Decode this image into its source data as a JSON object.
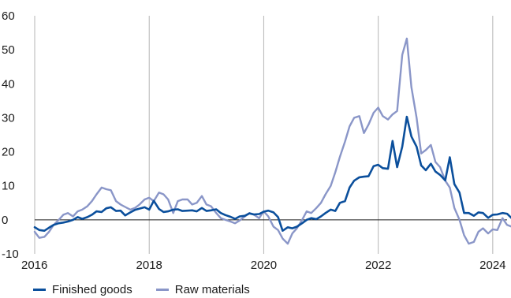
{
  "chart_data": {
    "type": "line",
    "title": "",
    "xlabel": "",
    "ylabel": "",
    "ylim": [
      -10,
      60
    ],
    "xlim": [
      2016,
      2024.25
    ],
    "yticks": [
      -10,
      0,
      10,
      20,
      30,
      40,
      50,
      60
    ],
    "xticks": [
      2016,
      2018,
      2020,
      2022,
      2024
    ],
    "xticklabels": [
      "2016",
      "2018",
      "2020",
      "2022",
      "2024"
    ],
    "grid": "vertical",
    "legend_position": "bottom-left",
    "series": [
      {
        "name": "Finished goods",
        "color": "#0b4f9c",
        "points": [
          [
            2016.0,
            -2.2
          ],
          [
            2016.08,
            -3.0
          ],
          [
            2016.17,
            -3.2
          ],
          [
            2016.25,
            -2.3
          ],
          [
            2016.33,
            -1.5
          ],
          [
            2016.42,
            -1.0
          ],
          [
            2016.5,
            -0.8
          ],
          [
            2016.58,
            -0.5
          ],
          [
            2016.67,
            0.0
          ],
          [
            2016.75,
            0.8
          ],
          [
            2016.83,
            0.3
          ],
          [
            2016.92,
            0.8
          ],
          [
            2017.0,
            1.5
          ],
          [
            2017.08,
            2.5
          ],
          [
            2017.17,
            2.3
          ],
          [
            2017.25,
            3.4
          ],
          [
            2017.33,
            3.7
          ],
          [
            2017.42,
            2.6
          ],
          [
            2017.5,
            2.7
          ],
          [
            2017.58,
            1.3
          ],
          [
            2017.67,
            2.2
          ],
          [
            2017.75,
            2.9
          ],
          [
            2017.83,
            3.3
          ],
          [
            2017.92,
            3.7
          ],
          [
            2018.0,
            3.0
          ],
          [
            2018.08,
            5.6
          ],
          [
            2018.17,
            3.2
          ],
          [
            2018.25,
            2.3
          ],
          [
            2018.33,
            2.5
          ],
          [
            2018.42,
            3.0
          ],
          [
            2018.5,
            3.1
          ],
          [
            2018.58,
            2.6
          ],
          [
            2018.67,
            2.7
          ],
          [
            2018.75,
            2.8
          ],
          [
            2018.83,
            2.5
          ],
          [
            2018.92,
            3.5
          ],
          [
            2019.0,
            2.6
          ],
          [
            2019.08,
            2.8
          ],
          [
            2019.17,
            3.1
          ],
          [
            2019.25,
            2.0
          ],
          [
            2019.33,
            1.4
          ],
          [
            2019.42,
            0.9
          ],
          [
            2019.5,
            0.3
          ],
          [
            2019.58,
            1.0
          ],
          [
            2019.67,
            1.2
          ],
          [
            2019.75,
            1.9
          ],
          [
            2019.83,
            1.6
          ],
          [
            2019.92,
            1.7
          ],
          [
            2020.0,
            2.4
          ],
          [
            2020.08,
            2.7
          ],
          [
            2020.17,
            2.2
          ],
          [
            2020.25,
            0.8
          ],
          [
            2020.33,
            -3.2
          ],
          [
            2020.42,
            -2.2
          ],
          [
            2020.5,
            -2.5
          ],
          [
            2020.58,
            -2.0
          ],
          [
            2020.67,
            -1.0
          ],
          [
            2020.75,
            0.0
          ],
          [
            2020.83,
            0.5
          ],
          [
            2020.92,
            0.2
          ],
          [
            2021.0,
            1.0
          ],
          [
            2021.08,
            2.0
          ],
          [
            2021.17,
            3.0
          ],
          [
            2021.25,
            2.6
          ],
          [
            2021.33,
            5.0
          ],
          [
            2021.42,
            5.5
          ],
          [
            2021.5,
            9.5
          ],
          [
            2021.58,
            11.5
          ],
          [
            2021.67,
            12.5
          ],
          [
            2021.75,
            12.7
          ],
          [
            2021.83,
            12.8
          ],
          [
            2021.92,
            15.8
          ],
          [
            2022.0,
            16.2
          ],
          [
            2022.08,
            15.2
          ],
          [
            2022.17,
            15.0
          ],
          [
            2022.25,
            23.2
          ],
          [
            2022.33,
            15.5
          ],
          [
            2022.42,
            21.5
          ],
          [
            2022.5,
            30.3
          ],
          [
            2022.58,
            24.5
          ],
          [
            2022.67,
            21.5
          ],
          [
            2022.75,
            16.0
          ],
          [
            2022.83,
            14.6
          ],
          [
            2022.92,
            16.5
          ],
          [
            2023.0,
            14.2
          ],
          [
            2023.08,
            13.2
          ],
          [
            2023.17,
            11.6
          ],
          [
            2023.25,
            18.4
          ],
          [
            2023.33,
            10.5
          ],
          [
            2023.42,
            8.0
          ],
          [
            2023.5,
            2.0
          ],
          [
            2023.58,
            2.0
          ],
          [
            2023.67,
            1.2
          ],
          [
            2023.75,
            2.2
          ],
          [
            2023.83,
            2.0
          ],
          [
            2023.92,
            0.6
          ],
          [
            2024.0,
            1.5
          ],
          [
            2024.08,
            1.6
          ],
          [
            2024.17,
            2.0
          ],
          [
            2024.25,
            1.8
          ],
          [
            2024.33,
            0.5
          ],
          [
            2024.42,
            -2.3
          ]
        ]
      },
      {
        "name": "Raw materials",
        "color": "#8a96c8",
        "points": [
          [
            2016.0,
            -3.5
          ],
          [
            2016.08,
            -5.3
          ],
          [
            2016.17,
            -5.0
          ],
          [
            2016.25,
            -3.5
          ],
          [
            2016.33,
            -1.5
          ],
          [
            2016.42,
            0.0
          ],
          [
            2016.5,
            1.5
          ],
          [
            2016.58,
            2.0
          ],
          [
            2016.67,
            1.0
          ],
          [
            2016.75,
            2.5
          ],
          [
            2016.83,
            3.0
          ],
          [
            2016.92,
            4.0
          ],
          [
            2017.0,
            5.5
          ],
          [
            2017.08,
            7.5
          ],
          [
            2017.17,
            9.5
          ],
          [
            2017.25,
            9.0
          ],
          [
            2017.33,
            8.7
          ],
          [
            2017.42,
            5.5
          ],
          [
            2017.5,
            4.5
          ],
          [
            2017.58,
            3.8
          ],
          [
            2017.67,
            3.0
          ],
          [
            2017.75,
            3.5
          ],
          [
            2017.83,
            4.5
          ],
          [
            2017.92,
            6.0
          ],
          [
            2018.0,
            6.5
          ],
          [
            2018.08,
            5.5
          ],
          [
            2018.17,
            8.0
          ],
          [
            2018.25,
            7.5
          ],
          [
            2018.33,
            6.0
          ],
          [
            2018.42,
            2.0
          ],
          [
            2018.5,
            5.5
          ],
          [
            2018.58,
            6.0
          ],
          [
            2018.67,
            6.0
          ],
          [
            2018.75,
            4.5
          ],
          [
            2018.83,
            5.0
          ],
          [
            2018.92,
            7.0
          ],
          [
            2019.0,
            4.5
          ],
          [
            2019.08,
            4.0
          ],
          [
            2019.17,
            2.0
          ],
          [
            2019.25,
            0.5
          ],
          [
            2019.33,
            0.0
          ],
          [
            2019.42,
            -0.5
          ],
          [
            2019.5,
            -1.0
          ],
          [
            2019.58,
            -0.2
          ],
          [
            2019.67,
            1.0
          ],
          [
            2019.75,
            2.0
          ],
          [
            2019.83,
            1.5
          ],
          [
            2019.92,
            0.5
          ],
          [
            2020.0,
            2.5
          ],
          [
            2020.08,
            1.0
          ],
          [
            2020.17,
            -2.0
          ],
          [
            2020.25,
            -3.0
          ],
          [
            2020.33,
            -5.5
          ],
          [
            2020.42,
            -7.0
          ],
          [
            2020.5,
            -4.0
          ],
          [
            2020.58,
            -2.5
          ],
          [
            2020.67,
            0.0
          ],
          [
            2020.75,
            2.5
          ],
          [
            2020.83,
            2.0
          ],
          [
            2020.92,
            3.5
          ],
          [
            2021.0,
            5.0
          ],
          [
            2021.08,
            7.5
          ],
          [
            2021.17,
            10.0
          ],
          [
            2021.25,
            14.0
          ],
          [
            2021.33,
            18.5
          ],
          [
            2021.42,
            23.0
          ],
          [
            2021.5,
            27.5
          ],
          [
            2021.58,
            30.0
          ],
          [
            2021.67,
            30.5
          ],
          [
            2021.75,
            25.5
          ],
          [
            2021.83,
            28.0
          ],
          [
            2021.92,
            31.5
          ],
          [
            2022.0,
            33.0
          ],
          [
            2022.08,
            30.5
          ],
          [
            2022.17,
            29.5
          ],
          [
            2022.25,
            31.0
          ],
          [
            2022.33,
            32.0
          ],
          [
            2022.42,
            48.5
          ],
          [
            2022.5,
            53.3
          ],
          [
            2022.58,
            39.0
          ],
          [
            2022.67,
            30.0
          ],
          [
            2022.75,
            19.5
          ],
          [
            2022.83,
            20.5
          ],
          [
            2022.92,
            22.0
          ],
          [
            2023.0,
            17.0
          ],
          [
            2023.08,
            15.5
          ],
          [
            2023.17,
            11.5
          ],
          [
            2023.25,
            9.5
          ],
          [
            2023.33,
            3.5
          ],
          [
            2023.42,
            0.0
          ],
          [
            2023.5,
            -4.5
          ],
          [
            2023.58,
            -7.0
          ],
          [
            2023.67,
            -6.5
          ],
          [
            2023.75,
            -3.5
          ],
          [
            2023.83,
            -2.5
          ],
          [
            2023.92,
            -4.0
          ],
          [
            2024.0,
            -2.8
          ],
          [
            2024.08,
            -3.0
          ],
          [
            2024.17,
            0.5
          ],
          [
            2024.25,
            -1.5
          ],
          [
            2024.33,
            -2.0
          ],
          [
            2024.42,
            -3.5
          ]
        ]
      }
    ]
  }
}
